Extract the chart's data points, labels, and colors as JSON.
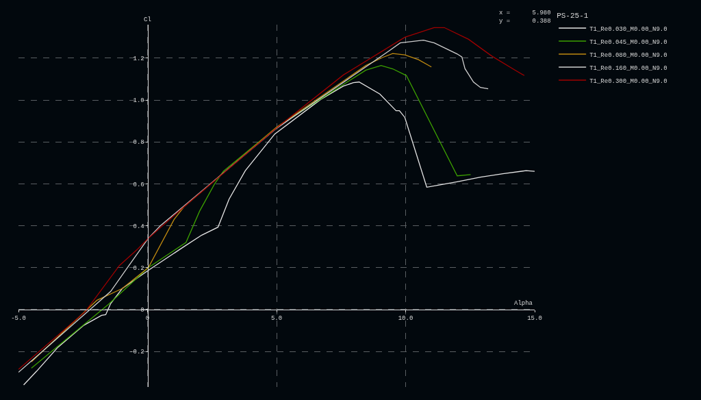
{
  "chart_data": {
    "type": "line",
    "xlabel": "Alpha",
    "ylabel": "Cl",
    "legend_title": "PS-25-1",
    "annotations": [
      "x =      5.980",
      "y =      0.388"
    ],
    "xlim": [
      -5,
      15
    ],
    "ylim": [
      -0.37,
      1.36
    ],
    "xticks": [
      {
        "value": -5,
        "label": "-5.0"
      },
      0,
      {
        "value": 5,
        "label": "5.0"
      },
      {
        "value": 10,
        "label": "10.0"
      },
      {
        "value": 15,
        "label": "15.0"
      }
    ],
    "yticks": [
      -0.2,
      0,
      0.2,
      0.4,
      0.6,
      0.8,
      {
        "value": 1,
        "label": "1.0"
      },
      1.2
    ],
    "grid": true,
    "legend": "right",
    "marker": "none",
    "line_style": "solid",
    "series": [
      {
        "name": "T1_Re0.030_M0.00_N9.0",
        "color": "#e6e6e6",
        "x": [
          -4.8,
          -4.3,
          -3.47,
          -2.49,
          -1.78,
          -1.62,
          -1.43,
          -0.98,
          0.03,
          1.41,
          2.1,
          2.73,
          3.16,
          3.79,
          4.93,
          6.71,
          7.59,
          7.98,
          8.2,
          9.0,
          9.63,
          9.76,
          9.97,
          10.82,
          11.3,
          12.0,
          12.9,
          13.77,
          14.67,
          15.0
        ],
        "values": [
          -0.36,
          -0.295,
          -0.18,
          -0.077,
          -0.028,
          -0.025,
          0.028,
          0.1,
          0.187,
          0.3,
          0.355,
          0.393,
          0.527,
          0.663,
          0.838,
          1.003,
          1.067,
          1.083,
          1.086,
          1.029,
          0.949,
          0.949,
          0.917,
          0.584,
          0.594,
          0.61,
          0.632,
          0.648,
          0.663,
          0.66
        ]
      },
      {
        "name": "T1_Re0.045_M0.00_N9.0",
        "color": "#3ca000",
        "x": [
          -4.5,
          -1.51,
          0.03,
          1.49,
          2.02,
          2.6,
          2.94,
          5.0,
          8.46,
          9.05,
          9.5,
          10.03,
          12.0,
          12.52
        ],
        "values": [
          -0.28,
          0.025,
          0.2,
          0.32,
          0.47,
          0.6,
          0.66,
          0.87,
          1.143,
          1.165,
          1.149,
          1.117,
          0.638,
          0.644
        ]
      },
      {
        "name": "T1_Re0.080_M0.00_N9.0",
        "color": "#c08a10",
        "x": [
          -4.5,
          -1.96,
          -0.98,
          0.03,
          1.03,
          1.41,
          5.0,
          8.46,
          9.1,
          9.5,
          9.97,
          10.5,
          11.0
        ],
        "values": [
          -0.25,
          0.044,
          0.1,
          0.2,
          0.43,
          0.49,
          0.87,
          1.165,
          1.203,
          1.222,
          1.216,
          1.193,
          1.158
        ]
      },
      {
        "name": "T1_Re0.160_M0.00_N9.0",
        "color": "#d0d0d0",
        "x": [
          -5.0,
          -1.43,
          -0.72,
          0.03,
          0.5,
          5.0,
          9.36,
          9.79,
          10.69,
          11.11,
          12.0,
          12.18,
          12.3,
          12.63,
          12.9,
          13.2
        ],
        "values": [
          -0.3,
          0.086,
          0.21,
          0.34,
          0.4,
          0.865,
          1.235,
          1.273,
          1.286,
          1.273,
          1.22,
          1.206,
          1.15,
          1.086,
          1.06,
          1.054
        ]
      },
      {
        "name": "T1_Re0.300_M0.00_N9.0",
        "color": "#a00000",
        "x": [
          -5.0,
          -2.41,
          -1.09,
          -0.37,
          0.03,
          1.41,
          4.93,
          7.59,
          9.97,
          11.1,
          11.5,
          12.44,
          13.34,
          14.2,
          14.6
        ],
        "values": [
          -0.286,
          -0.01,
          0.21,
          0.29,
          0.34,
          0.49,
          0.86,
          1.12,
          1.3,
          1.346,
          1.346,
          1.29,
          1.21,
          1.146,
          1.117
        ]
      }
    ]
  }
}
